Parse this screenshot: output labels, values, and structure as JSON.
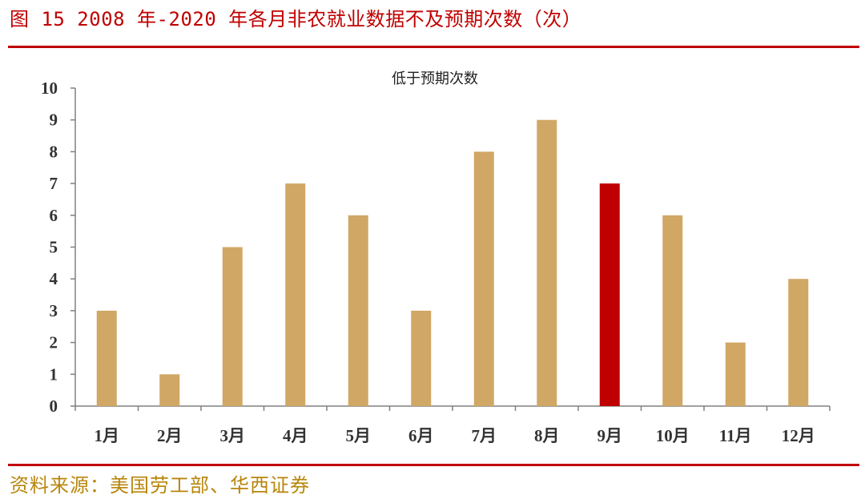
{
  "figure": {
    "title": "图 15 2008 年-2020 年各月非农就业数据不及预期次数（次）",
    "source": "资料来源：美国劳工部、华西证券"
  },
  "colors": {
    "accent": "#c00000",
    "bar": "#d1a765",
    "highlight_bar": "#c00000",
    "source_text": "#b8860b"
  },
  "chart_data": {
    "type": "bar",
    "title": "低于预期次数",
    "xlabel": "",
    "ylabel": "",
    "categories": [
      "1月",
      "2月",
      "3月",
      "4月",
      "5月",
      "6月",
      "7月",
      "8月",
      "9月",
      "10月",
      "11月",
      "12月"
    ],
    "values": [
      3,
      1,
      5,
      7,
      6,
      3,
      8,
      9,
      7,
      6,
      2,
      4
    ],
    "highlight_index": 8,
    "ylim": [
      0,
      10
    ],
    "yticks": [
      0,
      1,
      2,
      3,
      4,
      5,
      6,
      7,
      8,
      9,
      10
    ],
    "grid": false,
    "legend": "none"
  }
}
